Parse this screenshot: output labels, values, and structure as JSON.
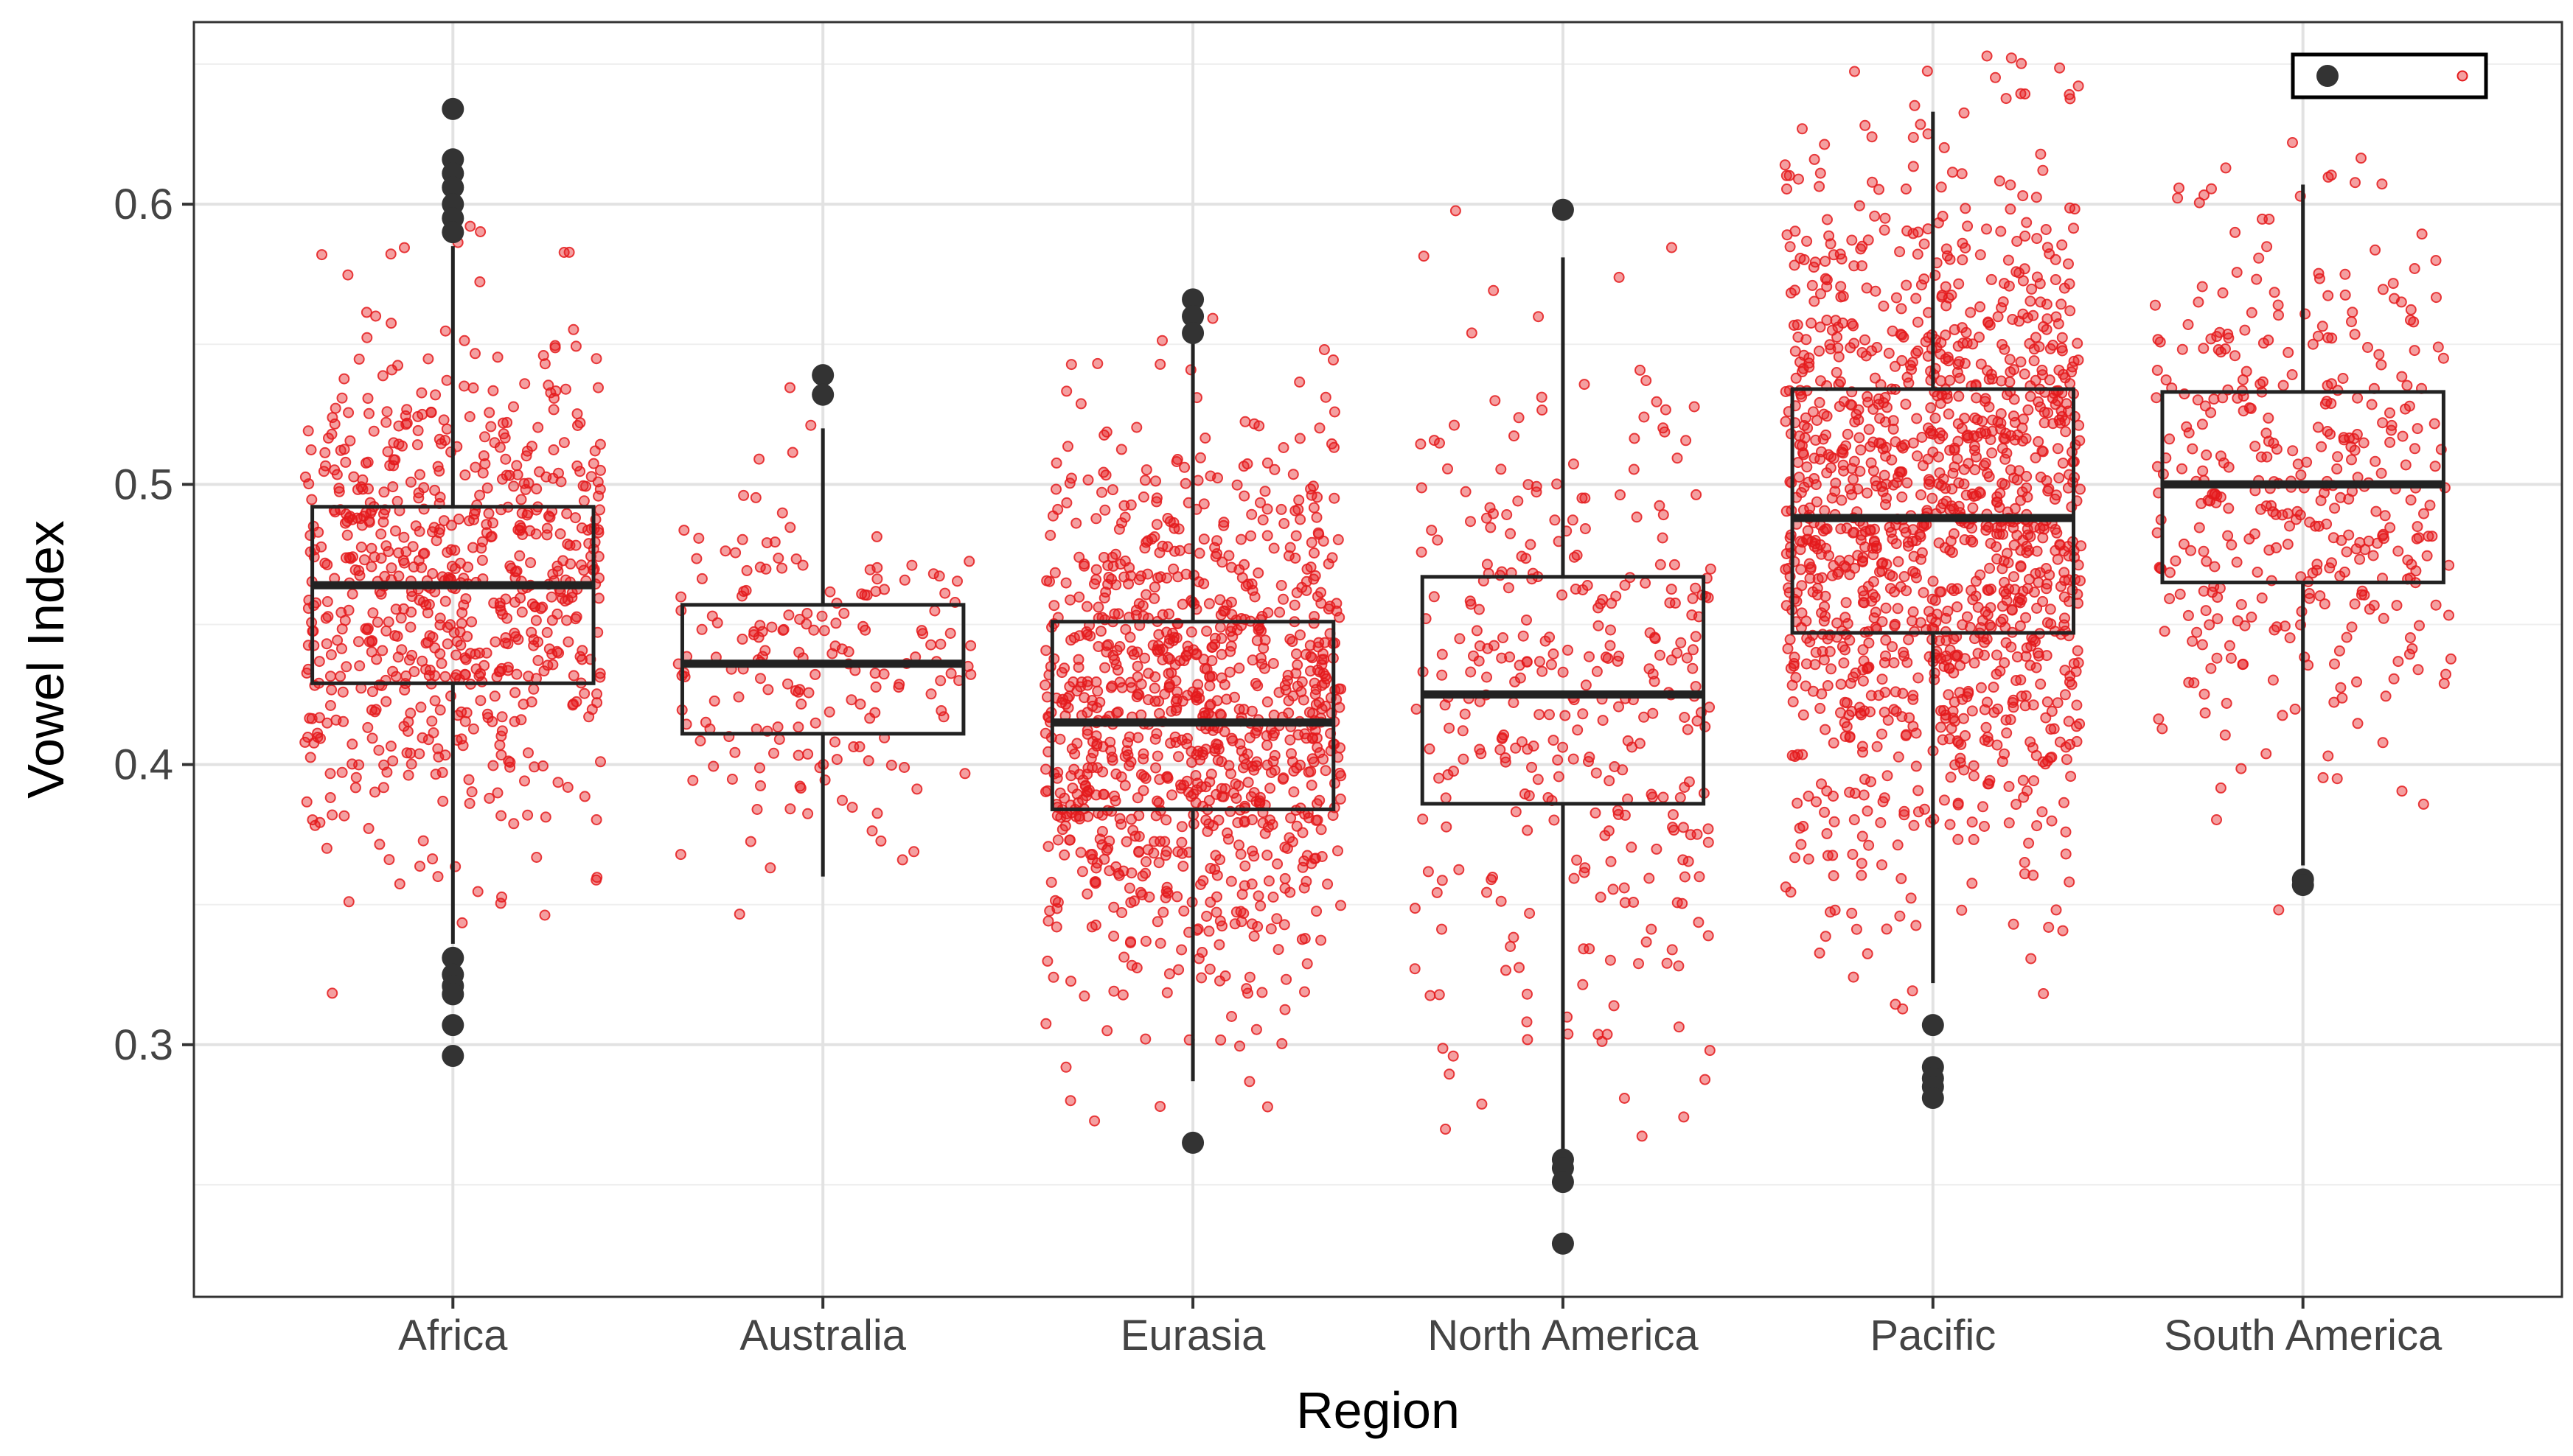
{
  "chart_data": {
    "type": "box",
    "title": "",
    "xlabel": "Region",
    "ylabel": "Vowel Index",
    "categories": [
      "Africa",
      "Australia",
      "Eurasia",
      "North America",
      "Pacific",
      "South America"
    ],
    "ylim": [
      0.21,
      0.665
    ],
    "yticks": [
      0.3,
      0.4,
      0.5,
      0.6
    ],
    "ytick_labels": [
      "0.3",
      "0.4",
      "0.5",
      "0.6"
    ],
    "grid": true,
    "legend": "top-right",
    "point_color": "#E41A1C",
    "box_color": "#222222",
    "boxes": [
      {
        "category": "Africa",
        "q1": 0.429,
        "median": 0.464,
        "q3": 0.492,
        "whisker_low": 0.336,
        "whisker_high": 0.585,
        "outliers": [
          0.634,
          0.616,
          0.611,
          0.606,
          0.6,
          0.595,
          0.59,
          0.331,
          0.325,
          0.321,
          0.318,
          0.307,
          0.296
        ],
        "n_points": 700
      },
      {
        "category": "Australia",
        "q1": 0.411,
        "median": 0.436,
        "q3": 0.457,
        "whisker_low": 0.36,
        "whisker_high": 0.52,
        "outliers": [
          0.539,
          0.532
        ],
        "n_points": 180
      },
      {
        "category": "Eurasia",
        "q1": 0.384,
        "median": 0.415,
        "q3": 0.451,
        "whisker_low": 0.287,
        "whisker_high": 0.551,
        "outliers": [
          0.566,
          0.56,
          0.554,
          0.265
        ],
        "n_points": 1000
      },
      {
        "category": "North America",
        "q1": 0.386,
        "median": 0.425,
        "q3": 0.467,
        "whisker_low": 0.262,
        "whisker_high": 0.581,
        "outliers": [
          0.598,
          0.259,
          0.256,
          0.251,
          0.229
        ],
        "n_points": 330
      },
      {
        "category": "Pacific",
        "q1": 0.447,
        "median": 0.488,
        "q3": 0.534,
        "whisker_low": 0.322,
        "whisker_high": 0.633,
        "outliers": [
          0.307,
          0.292,
          0.288,
          0.285,
          0.281
        ],
        "n_points": 1300
      },
      {
        "category": "South America",
        "q1": 0.465,
        "median": 0.5,
        "q3": 0.533,
        "whisker_low": 0.364,
        "whisker_high": 0.607,
        "outliers": [
          0.359,
          0.357
        ],
        "n_points": 380
      }
    ]
  }
}
